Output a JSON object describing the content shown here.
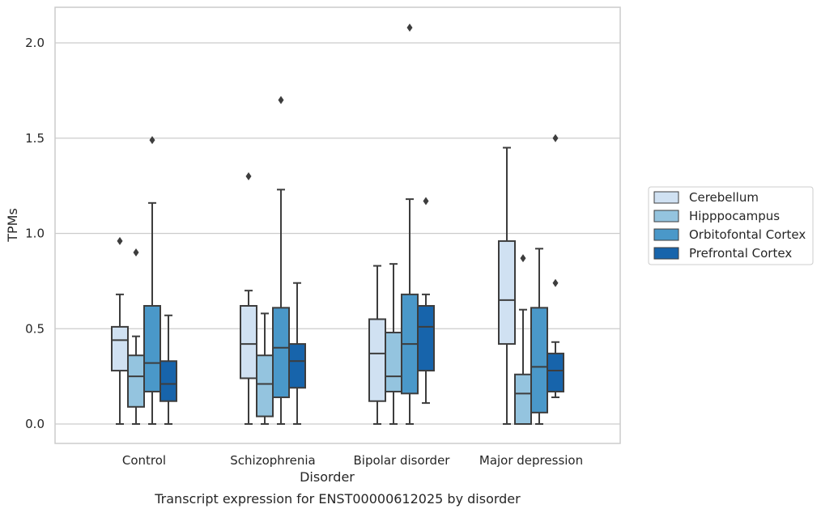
{
  "chart_data": {
    "type": "box",
    "title": "",
    "caption": "Transcript expression for ENST00000612025 by disorder",
    "xlabel": "Disorder",
    "ylabel": "TPMs",
    "ylim": [
      -0.1,
      2.2
    ],
    "yticks": [
      0.0,
      0.5,
      1.0,
      1.5,
      2.0
    ],
    "ytick_labels": [
      "0.0",
      "0.5",
      "1.0",
      "1.5",
      "2.0"
    ],
    "grid": "horizontal",
    "legend_position": "right",
    "categories": [
      "Control",
      "Schizophrenia",
      "Bipolar disorder",
      "Major depression"
    ],
    "series": [
      {
        "name": "Cerebellum",
        "color": "#d0e1f2",
        "boxes": [
          {
            "whisker_low": 0.0,
            "q1": 0.28,
            "median": 0.44,
            "q3": 0.51,
            "whisker_high": 0.68,
            "outliers": [
              0.96
            ]
          },
          {
            "whisker_low": 0.0,
            "q1": 0.24,
            "median": 0.42,
            "q3": 0.62,
            "whisker_high": 0.7,
            "outliers": [
              1.3
            ]
          },
          {
            "whisker_low": 0.0,
            "q1": 0.12,
            "median": 0.37,
            "q3": 0.55,
            "whisker_high": 0.83,
            "outliers": []
          },
          {
            "whisker_low": 0.0,
            "q1": 0.42,
            "median": 0.65,
            "q3": 0.96,
            "whisker_high": 1.45,
            "outliers": []
          }
        ]
      },
      {
        "name": "Hipppocampus",
        "color": "#94c4df",
        "boxes": [
          {
            "whisker_low": 0.0,
            "q1": 0.09,
            "median": 0.25,
            "q3": 0.36,
            "whisker_high": 0.46,
            "outliers": [
              0.9
            ]
          },
          {
            "whisker_low": 0.0,
            "q1": 0.04,
            "median": 0.21,
            "q3": 0.36,
            "whisker_high": 0.58,
            "outliers": []
          },
          {
            "whisker_low": 0.0,
            "q1": 0.17,
            "median": 0.25,
            "q3": 0.48,
            "whisker_high": 0.84,
            "outliers": []
          },
          {
            "whisker_low": 0.0,
            "q1": 0.0,
            "median": 0.16,
            "q3": 0.26,
            "whisker_high": 0.6,
            "outliers": [
              0.87
            ]
          }
        ]
      },
      {
        "name": "Orbitofontal Cortex",
        "color": "#4a98c9",
        "boxes": [
          {
            "whisker_low": 0.0,
            "q1": 0.17,
            "median": 0.32,
            "q3": 0.62,
            "whisker_high": 1.16,
            "outliers": [
              1.49
            ]
          },
          {
            "whisker_low": 0.0,
            "q1": 0.14,
            "median": 0.4,
            "q3": 0.61,
            "whisker_high": 1.23,
            "outliers": [
              1.7
            ]
          },
          {
            "whisker_low": 0.0,
            "q1": 0.16,
            "median": 0.42,
            "q3": 0.68,
            "whisker_high": 1.18,
            "outliers": [
              2.08
            ]
          },
          {
            "whisker_low": 0.0,
            "q1": 0.06,
            "median": 0.3,
            "q3": 0.61,
            "whisker_high": 0.92,
            "outliers": []
          }
        ]
      },
      {
        "name": "Prefrontal Cortex",
        "color": "#1764ab",
        "boxes": [
          {
            "whisker_low": 0.0,
            "q1": 0.12,
            "median": 0.21,
            "q3": 0.33,
            "whisker_high": 0.57,
            "outliers": []
          },
          {
            "whisker_low": 0.0,
            "q1": 0.19,
            "median": 0.33,
            "q3": 0.42,
            "whisker_high": 0.74,
            "outliers": []
          },
          {
            "whisker_low": 0.11,
            "q1": 0.28,
            "median": 0.51,
            "q3": 0.62,
            "whisker_high": 0.68,
            "outliers": [
              1.17
            ]
          },
          {
            "whisker_low": 0.14,
            "q1": 0.17,
            "median": 0.28,
            "q3": 0.37,
            "whisker_high": 0.43,
            "outliers": [
              0.74,
              1.5
            ]
          }
        ]
      }
    ]
  }
}
